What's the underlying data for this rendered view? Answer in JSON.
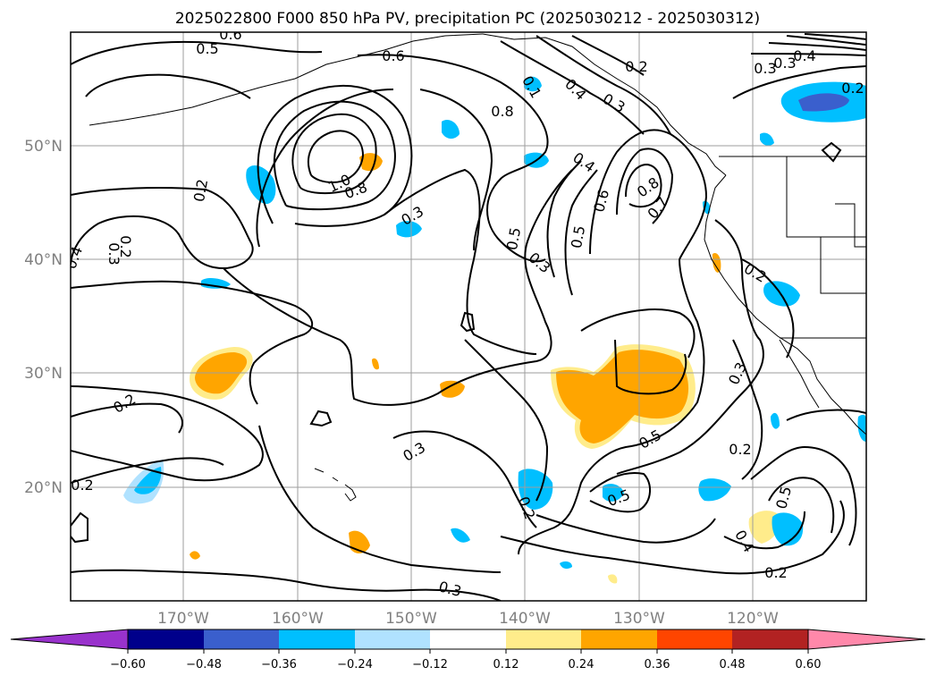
{
  "map": {
    "title": "2025022800 F000 850 hPa PV, precipitation PC (2025030212 - 2025030312)",
    "lat_labels": [
      "50°N",
      "40°N",
      "30°N",
      "20°N"
    ],
    "lon_labels": [
      "170°W",
      "160°W",
      "150°W",
      "140°W",
      "130°W",
      "120°W"
    ],
    "contour_labels": [
      "0.5",
      "0.6",
      "0.6",
      "0.2",
      "0.2",
      "0.1",
      "0.4",
      "0.3",
      "0.8",
      "0.3",
      "0.4",
      "1.0",
      "0.8",
      "0.3",
      "0.2",
      "0.3",
      "0.5",
      "0.3",
      "0.5",
      "0.6",
      "0.8",
      "0.7",
      "0.4",
      "0.3",
      "0.4",
      "0.2",
      "0.2",
      "0.3",
      "0.3",
      "0.5",
      "0.2",
      "0.2",
      "0.2",
      "0.5",
      "0.5",
      "0.4",
      "0.2",
      "0.2",
      "0.3"
    ],
    "colorbar": {
      "tick_labels": [
        "−0.60",
        "−0.48",
        "−0.36",
        "−0.24",
        "−0.12",
        "0.12",
        "0.24",
        "0.36",
        "0.48",
        "0.60"
      ],
      "colors": [
        "#9932cc",
        "#00008b",
        "#3a5fcd",
        "#00bfff",
        "#b0e2ff",
        "#ffffff",
        "#ffec8b",
        "#ffa500",
        "#ff4500",
        "#b22222",
        "#ff88aa"
      ]
    },
    "shading_colors": {
      "blue_light": "#b0e2ff",
      "blue": "#00bfff",
      "blue_dark": "#3a5fcd",
      "yellow": "#ffec8b",
      "orange": "#ffa500"
    }
  }
}
